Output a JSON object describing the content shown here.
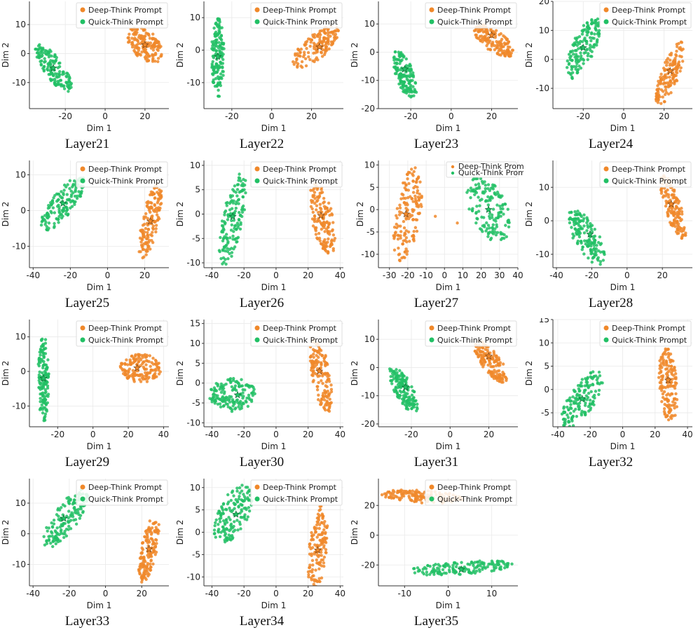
{
  "colors": {
    "deep": "#f0882a",
    "quick": "#22c065"
  },
  "legend": {
    "deep": "Deep-Think Prompt",
    "quick": "Quick-Think Prompt"
  },
  "axis_labels": {
    "x": "Dim 1",
    "y": "Dim 2"
  },
  "chart_data": [
    {
      "type": "scatter",
      "title": "Layer21",
      "xlabel": "Dim 1",
      "ylabel": "Dim 2",
      "xlim": [
        -38,
        32
      ],
      "ylim": [
        -19,
        18
      ],
      "xticks": [
        -20,
        0,
        20
      ],
      "yticks": [
        -10,
        0,
        10
      ],
      "series": [
        {
          "name": "Deep-Think Prompt",
          "clusters": [
            {
              "cx": 20,
              "cy": 3,
              "rx": 9,
              "ry": 5,
              "rot": -25,
              "n": 150
            }
          ],
          "centroid": [
            20,
            3
          ]
        },
        {
          "name": "Quick-Think Prompt",
          "clusters": [
            {
              "cx": -26,
              "cy": -5,
              "rx": 11,
              "ry": 4,
              "rot": -40,
              "n": 150
            }
          ],
          "centroid": [
            -26,
            -5
          ]
        }
      ]
    },
    {
      "type": "scatter",
      "title": "Layer22",
      "xlabel": "Dim 1",
      "ylabel": "Dim 2",
      "xlim": [
        -34,
        36
      ],
      "ylim": [
        -18,
        15
      ],
      "xticks": [
        -20,
        0,
        20
      ],
      "yticks": [
        -10,
        0,
        10
      ],
      "series": [
        {
          "name": "Deep-Think Prompt",
          "clusters": [
            {
              "cx": 22,
              "cy": 1,
              "rx": 12,
              "ry": 4,
              "rot": 25,
              "n": 150
            }
          ],
          "centroid": [
            24,
            1
          ]
        },
        {
          "name": "Quick-Think Prompt",
          "clusters": [
            {
              "cx": -27,
              "cy": -2,
              "rx": 3,
              "ry": 12,
              "rot": 0,
              "n": 150
            }
          ],
          "centroid": [
            -27,
            -2
          ]
        }
      ]
    },
    {
      "type": "scatter",
      "title": "Layer23",
      "xlabel": "Dim 1",
      "ylabel": "Dim 2",
      "xlim": [
        -36,
        33
      ],
      "ylim": [
        -20,
        18
      ],
      "xticks": [
        -20,
        0,
        20
      ],
      "yticks": [
        -20,
        -10,
        0,
        10
      ],
      "series": [
        {
          "name": "Deep-Think Prompt",
          "clusters": [
            {
              "cx": 21,
              "cy": 4,
              "rx": 10,
              "ry": 4,
              "rot": -25,
              "n": 150
            }
          ],
          "centroid": [
            20,
            6
          ]
        },
        {
          "name": "Quick-Think Prompt",
          "clusters": [
            {
              "cx": -23,
              "cy": -8,
              "rx": 9,
              "ry": 4,
              "rot": -60,
              "n": 150
            }
          ],
          "centroid": [
            -23,
            -6
          ]
        }
      ]
    },
    {
      "type": "scatter",
      "title": "Layer24",
      "xlabel": "Dim 1",
      "ylabel": "Dim 2",
      "xlim": [
        -35,
        34
      ],
      "ylim": [
        -17,
        20
      ],
      "xticks": [
        -20,
        0,
        20
      ],
      "yticks": [
        -10,
        0,
        10,
        20
      ],
      "series": [
        {
          "name": "Deep-Think Prompt",
          "clusters": [
            {
              "cx": 23,
              "cy": -5,
              "rx": 12,
              "ry": 4,
              "rot": 60,
              "n": 150
            }
          ],
          "centroid": [
            23,
            -4
          ]
        },
        {
          "name": "Quick-Think Prompt",
          "clusters": [
            {
              "cx": -20,
              "cy": 4,
              "rx": 12,
              "ry": 5,
              "rot": 55,
              "n": 150
            }
          ],
          "centroid": [
            -20,
            4
          ]
        }
      ]
    },
    {
      "type": "scatter",
      "title": "Layer25",
      "xlabel": "Dim 1",
      "ylabel": "Dim 2",
      "xlim": [
        -42,
        33
      ],
      "ylim": [
        -16,
        14
      ],
      "xticks": [
        -40,
        -20,
        0,
        20
      ],
      "yticks": [
        -10,
        0,
        10
      ],
      "series": [
        {
          "name": "Deep-Think Prompt",
          "clusters": [
            {
              "cx": 23,
              "cy": -3,
              "rx": 11,
              "ry": 4,
              "rot": 65,
              "n": 150
            }
          ],
          "centroid": [
            23,
            -3
          ]
        },
        {
          "name": "Quick-Think Prompt",
          "clusters": [
            {
              "cx": -24,
              "cy": 2,
              "rx": 13,
              "ry": 4,
              "rot": 30,
              "n": 150
            }
          ],
          "centroid": [
            -24,
            2
          ]
        }
      ]
    },
    {
      "type": "scatter",
      "title": "Layer26",
      "xlabel": "Dim 1",
      "ylabel": "Dim 2",
      "xlim": [
        -45,
        42
      ],
      "ylim": [
        -11,
        11
      ],
      "xticks": [
        -40,
        -20,
        0,
        20,
        40
      ],
      "yticks": [
        -10,
        -5,
        0,
        5,
        10
      ],
      "series": [
        {
          "name": "Deep-Think Prompt",
          "clusters": [
            {
              "cx": 29,
              "cy": -1,
              "rx": 9,
              "ry": 5,
              "rot": -40,
              "n": 150
            }
          ],
          "centroid": [
            28,
            -0.3
          ]
        },
        {
          "name": "Quick-Think Prompt",
          "clusters": [
            {
              "cx": -27,
              "cy": -1,
              "rx": 11,
              "ry": 5,
              "rot": 50,
              "n": 150
            }
          ],
          "centroid": [
            -27,
            -0.5
          ]
        }
      ]
    },
    {
      "type": "scatter",
      "title": "Layer27",
      "xlabel": "Dim 1",
      "ylabel": "Dim 2",
      "xlim": [
        -36,
        40
      ],
      "ylim": [
        -13,
        11
      ],
      "xticks": [
        -30,
        -20,
        -10,
        0,
        10,
        20,
        30,
        40
      ],
      "yticks": [
        -10,
        -5,
        0,
        5,
        10
      ],
      "series": [
        {
          "name": "Deep-Think Prompt",
          "clusters": [
            {
              "cx": -20,
              "cy": -1,
              "rx": 11,
              "ry": 6,
              "rot": 60,
              "n": 150
            }
          ],
          "extra": [
            [
              -5,
              -1.5
            ],
            [
              7,
              -3
            ]
          ],
          "centroid": [
            -21,
            -1
          ]
        },
        {
          "name": "Quick-Think Prompt",
          "clusters": [
            {
              "cx": 24,
              "cy": 0,
              "rx": 12,
              "ry": 6,
              "rot": -20,
              "n": 150
            }
          ],
          "centroid": [
            24,
            0
          ]
        }
      ]
    },
    {
      "type": "scatter",
      "title": "Layer28",
      "xlabel": "Dim 1",
      "ylabel": "Dim 2",
      "xlim": [
        -42,
        37
      ],
      "ylim": [
        -14,
        18
      ],
      "xticks": [
        -40,
        -20,
        0,
        20
      ],
      "yticks": [
        -10,
        0,
        10
      ],
      "series": [
        {
          "name": "Deep-Think Prompt",
          "clusters": [
            {
              "cx": 26,
              "cy": 4,
              "rx": 11,
              "ry": 4,
              "rot": -55,
              "n": 150
            }
          ],
          "centroid": [
            25,
            5
          ]
        },
        {
          "name": "Quick-Think Prompt",
          "clusters": [
            {
              "cx": -23,
              "cy": -5,
              "rx": 12,
              "ry": 5,
              "rot": -35,
              "n": 150
            }
          ],
          "centroid": [
            -21,
            -4
          ]
        }
      ]
    },
    {
      "type": "scatter",
      "title": "Layer29",
      "xlabel": "Dim 1",
      "ylabel": "Dim 2",
      "xlim": [
        -36,
        43
      ],
      "ylim": [
        -16,
        15
      ],
      "xticks": [
        -20,
        0,
        20,
        40
      ],
      "yticks": [
        -10,
        0,
        10
      ],
      "series": [
        {
          "name": "Deep-Think Prompt",
          "clusters": [
            {
              "cx": 27,
              "cy": 1,
              "rx": 11,
              "ry": 4,
              "rot": 0,
              "n": 150
            }
          ],
          "centroid": [
            25,
            1
          ]
        },
        {
          "name": "Quick-Think Prompt",
          "clusters": [
            {
              "cx": -28,
              "cy": -2,
              "rx": 3,
              "ry": 12,
              "rot": 0,
              "n": 150
            }
          ],
          "centroid": [
            -28,
            -2
          ]
        }
      ]
    },
    {
      "type": "scatter",
      "title": "Layer30",
      "xlabel": "Dim 1",
      "ylabel": "Dim 2",
      "xlim": [
        -45,
        42
      ],
      "ylim": [
        -11,
        16
      ],
      "xticks": [
        -40,
        -20,
        0,
        20,
        40
      ],
      "yticks": [
        -10,
        -5,
        0,
        5,
        10,
        15
      ],
      "series": [
        {
          "name": "Deep-Think Prompt",
          "clusters": [
            {
              "cx": 28,
              "cy": 2,
              "rx": 10,
              "ry": 5,
              "rot": -60,
              "n": 150
            }
          ],
          "centroid": [
            27,
            3
          ]
        },
        {
          "name": "Quick-Think Prompt",
          "clusters": [
            {
              "cx": -27,
              "cy": -3,
              "rx": 14,
              "ry": 4,
              "rot": 0,
              "n": 150
            }
          ],
          "centroid": [
            -24,
            -3
          ]
        }
      ]
    },
    {
      "type": "scatter",
      "title": "Layer31",
      "xlabel": "Dim 1",
      "ylabel": "Dim 2",
      "xlim": [
        -37,
        35
      ],
      "ylim": [
        -21,
        17
      ],
      "xticks": [
        -20,
        0,
        20
      ],
      "yticks": [
        -20,
        -10,
        0,
        10
      ],
      "series": [
        {
          "name": "Deep-Think Prompt",
          "clusters": [
            {
              "cx": 21,
              "cy": 2,
              "rx": 10,
              "ry": 4,
              "rot": -40,
              "n": 150
            }
          ],
          "centroid": [
            20,
            4
          ]
        },
        {
          "name": "Quick-Think Prompt",
          "clusters": [
            {
              "cx": -24,
              "cy": -8,
              "rx": 10,
              "ry": 4,
              "rot": -50,
              "n": 150
            }
          ],
          "centroid": [
            -23,
            -7
          ]
        }
      ]
    },
    {
      "type": "scatter",
      "title": "Layer32",
      "xlabel": "Dim 1",
      "ylabel": "Dim 2",
      "xlim": [
        -43,
        43
      ],
      "ylim": [
        -8,
        15
      ],
      "xticks": [
        -40,
        -20,
        0,
        20,
        40
      ],
      "yticks": [
        -5,
        0,
        5,
        10,
        15
      ],
      "series": [
        {
          "name": "Deep-Think Prompt",
          "clusters": [
            {
              "cx": 28,
              "cy": 1,
              "rx": 8,
              "ry": 5,
              "rot": -70,
              "n": 150
            }
          ],
          "centroid": [
            28,
            2
          ]
        },
        {
          "name": "Quick-Think Prompt",
          "clusters": [
            {
              "cx": -25,
              "cy": -2,
              "rx": 13,
              "ry": 4,
              "rot": 20,
              "n": 150
            }
          ],
          "centroid": [
            -25,
            -2
          ]
        }
      ]
    },
    {
      "type": "scatter",
      "title": "Layer33",
      "xlabel": "Dim 1",
      "ylabel": "Dim 2",
      "xlim": [
        -42,
        35
      ],
      "ylim": [
        -17,
        18
      ],
      "xticks": [
        -40,
        -20,
        0,
        20
      ],
      "yticks": [
        -10,
        0,
        10
      ],
      "series": [
        {
          "name": "Deep-Think Prompt",
          "clusters": [
            {
              "cx": 24,
              "cy": -5,
              "rx": 11,
              "ry": 4,
              "rot": 70,
              "n": 150
            }
          ],
          "centroid": [
            24,
            -5
          ]
        },
        {
          "name": "Quick-Think Prompt",
          "clusters": [
            {
              "cx": -22,
              "cy": 5,
              "rx": 14,
              "ry": 5,
              "rot": 35,
              "n": 150
            }
          ],
          "centroid": [
            -23,
            5
          ]
        }
      ]
    },
    {
      "type": "scatter",
      "title": "Layer34",
      "xlabel": "Dim 1",
      "ylabel": "Dim 2",
      "xlim": [
        -45,
        42
      ],
      "ylim": [
        -12,
        12
      ],
      "xticks": [
        -40,
        -20,
        0,
        20,
        40
      ],
      "yticks": [
        -10,
        -5,
        0,
        5,
        10
      ],
      "series": [
        {
          "name": "Deep-Think Prompt",
          "clusters": [
            {
              "cx": 26,
              "cy": -4,
              "rx": 10,
              "ry": 5,
              "rot": 70,
              "n": 150
            }
          ],
          "centroid": [
            26,
            -4
          ]
        },
        {
          "name": "Quick-Think Prompt",
          "clusters": [
            {
              "cx": -27,
              "cy": 4,
              "rx": 12,
              "ry": 5,
              "rot": 20,
              "n": 150
            }
          ],
          "centroid": [
            -25,
            4
          ]
        }
      ]
    },
    {
      "type": "scatter",
      "title": "Layer35",
      "xlabel": "Dim 1",
      "ylabel": "Dim 2",
      "xlim": [
        -16,
        16
      ],
      "ylim": [
        -34,
        38
      ],
      "xticks": [
        -10,
        0,
        10
      ],
      "yticks": [
        -20,
        0,
        20
      ],
      "series": [
        {
          "name": "Deep-Think Prompt",
          "clusters": [
            {
              "cx": -6,
              "cy": 26,
              "rx": 9,
              "ry": 4,
              "rot": -12,
              "n": 150
            }
          ],
          "centroid": [
            -4,
            25
          ]
        },
        {
          "name": "Quick-Think Prompt",
          "clusters": [
            {
              "cx": 3,
              "cy": -22,
              "rx": 12,
              "ry": 4,
              "rot": 13,
              "n": 150
            }
          ],
          "centroid": [
            3,
            -23
          ]
        }
      ]
    }
  ]
}
